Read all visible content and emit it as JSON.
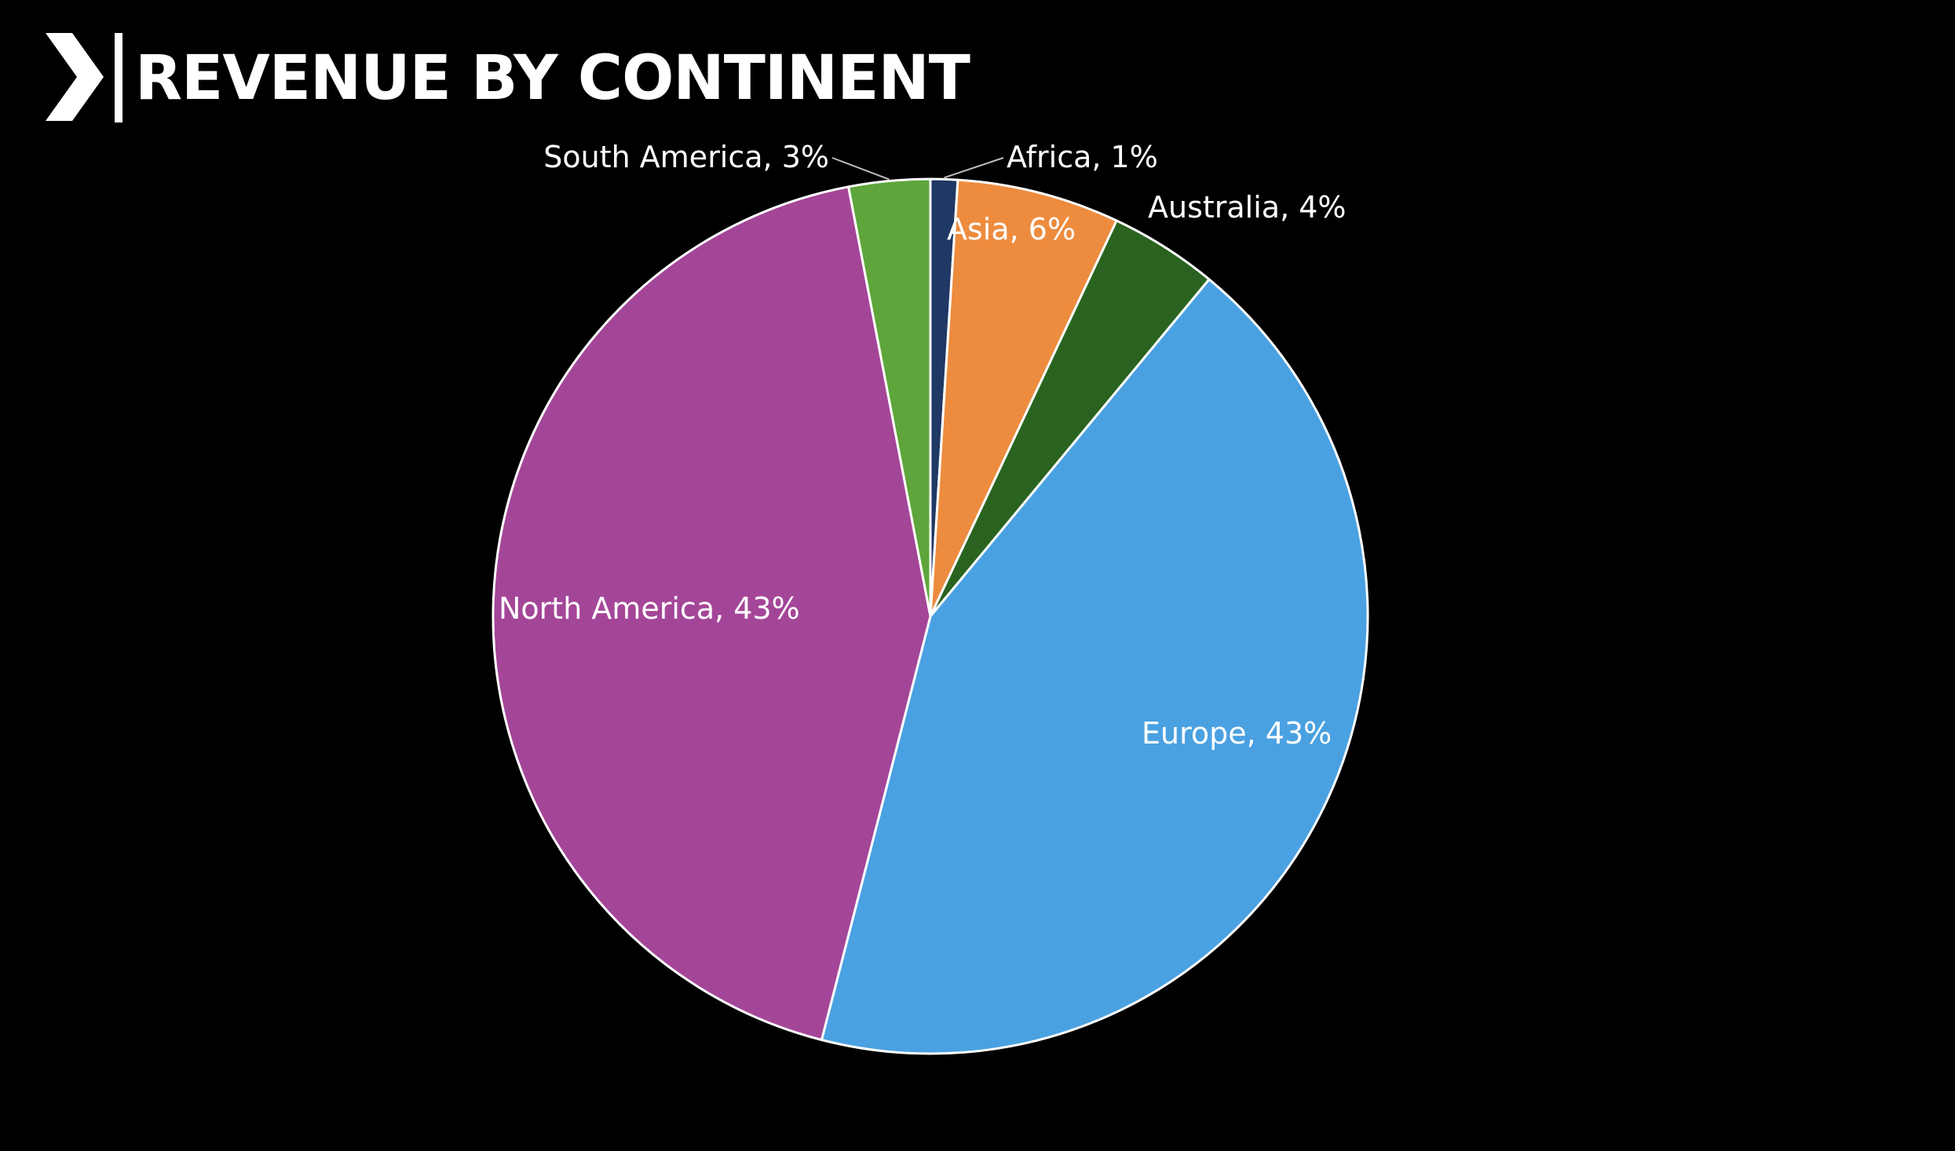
{
  "header": {
    "title": "REVENUE BY CONTINENT",
    "logo_icon": "chevron-bar-logo-icon"
  },
  "colors": {
    "background": "#000000",
    "slice_border": "#ffffff",
    "label_text": "#ffffff"
  },
  "chart_data": {
    "type": "pie",
    "title": "REVENUE BY CONTINENT",
    "start_angle_deg": 0,
    "direction": "clockwise",
    "slices": [
      {
        "label": "Africa",
        "value": 1,
        "label_text": "Africa, 1%",
        "color": "#1f3864"
      },
      {
        "label": "Asia",
        "value": 6,
        "label_text": "Asia, 6%",
        "color": "#ed8c3f"
      },
      {
        "label": "Australia",
        "value": 4,
        "label_text": "Australia, 4%",
        "color": "#2a6320"
      },
      {
        "label": "Europe",
        "value": 43,
        "label_text": "Europe, 43%",
        "color": "#4aa1e1"
      },
      {
        "label": "North America",
        "value": 43,
        "label_text": "North America, 43%",
        "color": "#a44698"
      },
      {
        "label": "South America",
        "value": 3,
        "label_text": "South America, 3%",
        "color": "#5ea53b"
      }
    ],
    "labels_inside": [
      "Asia",
      "Europe",
      "North America"
    ],
    "labels_outside": [
      "Africa",
      "Australia",
      "South America"
    ],
    "legend": "none"
  }
}
